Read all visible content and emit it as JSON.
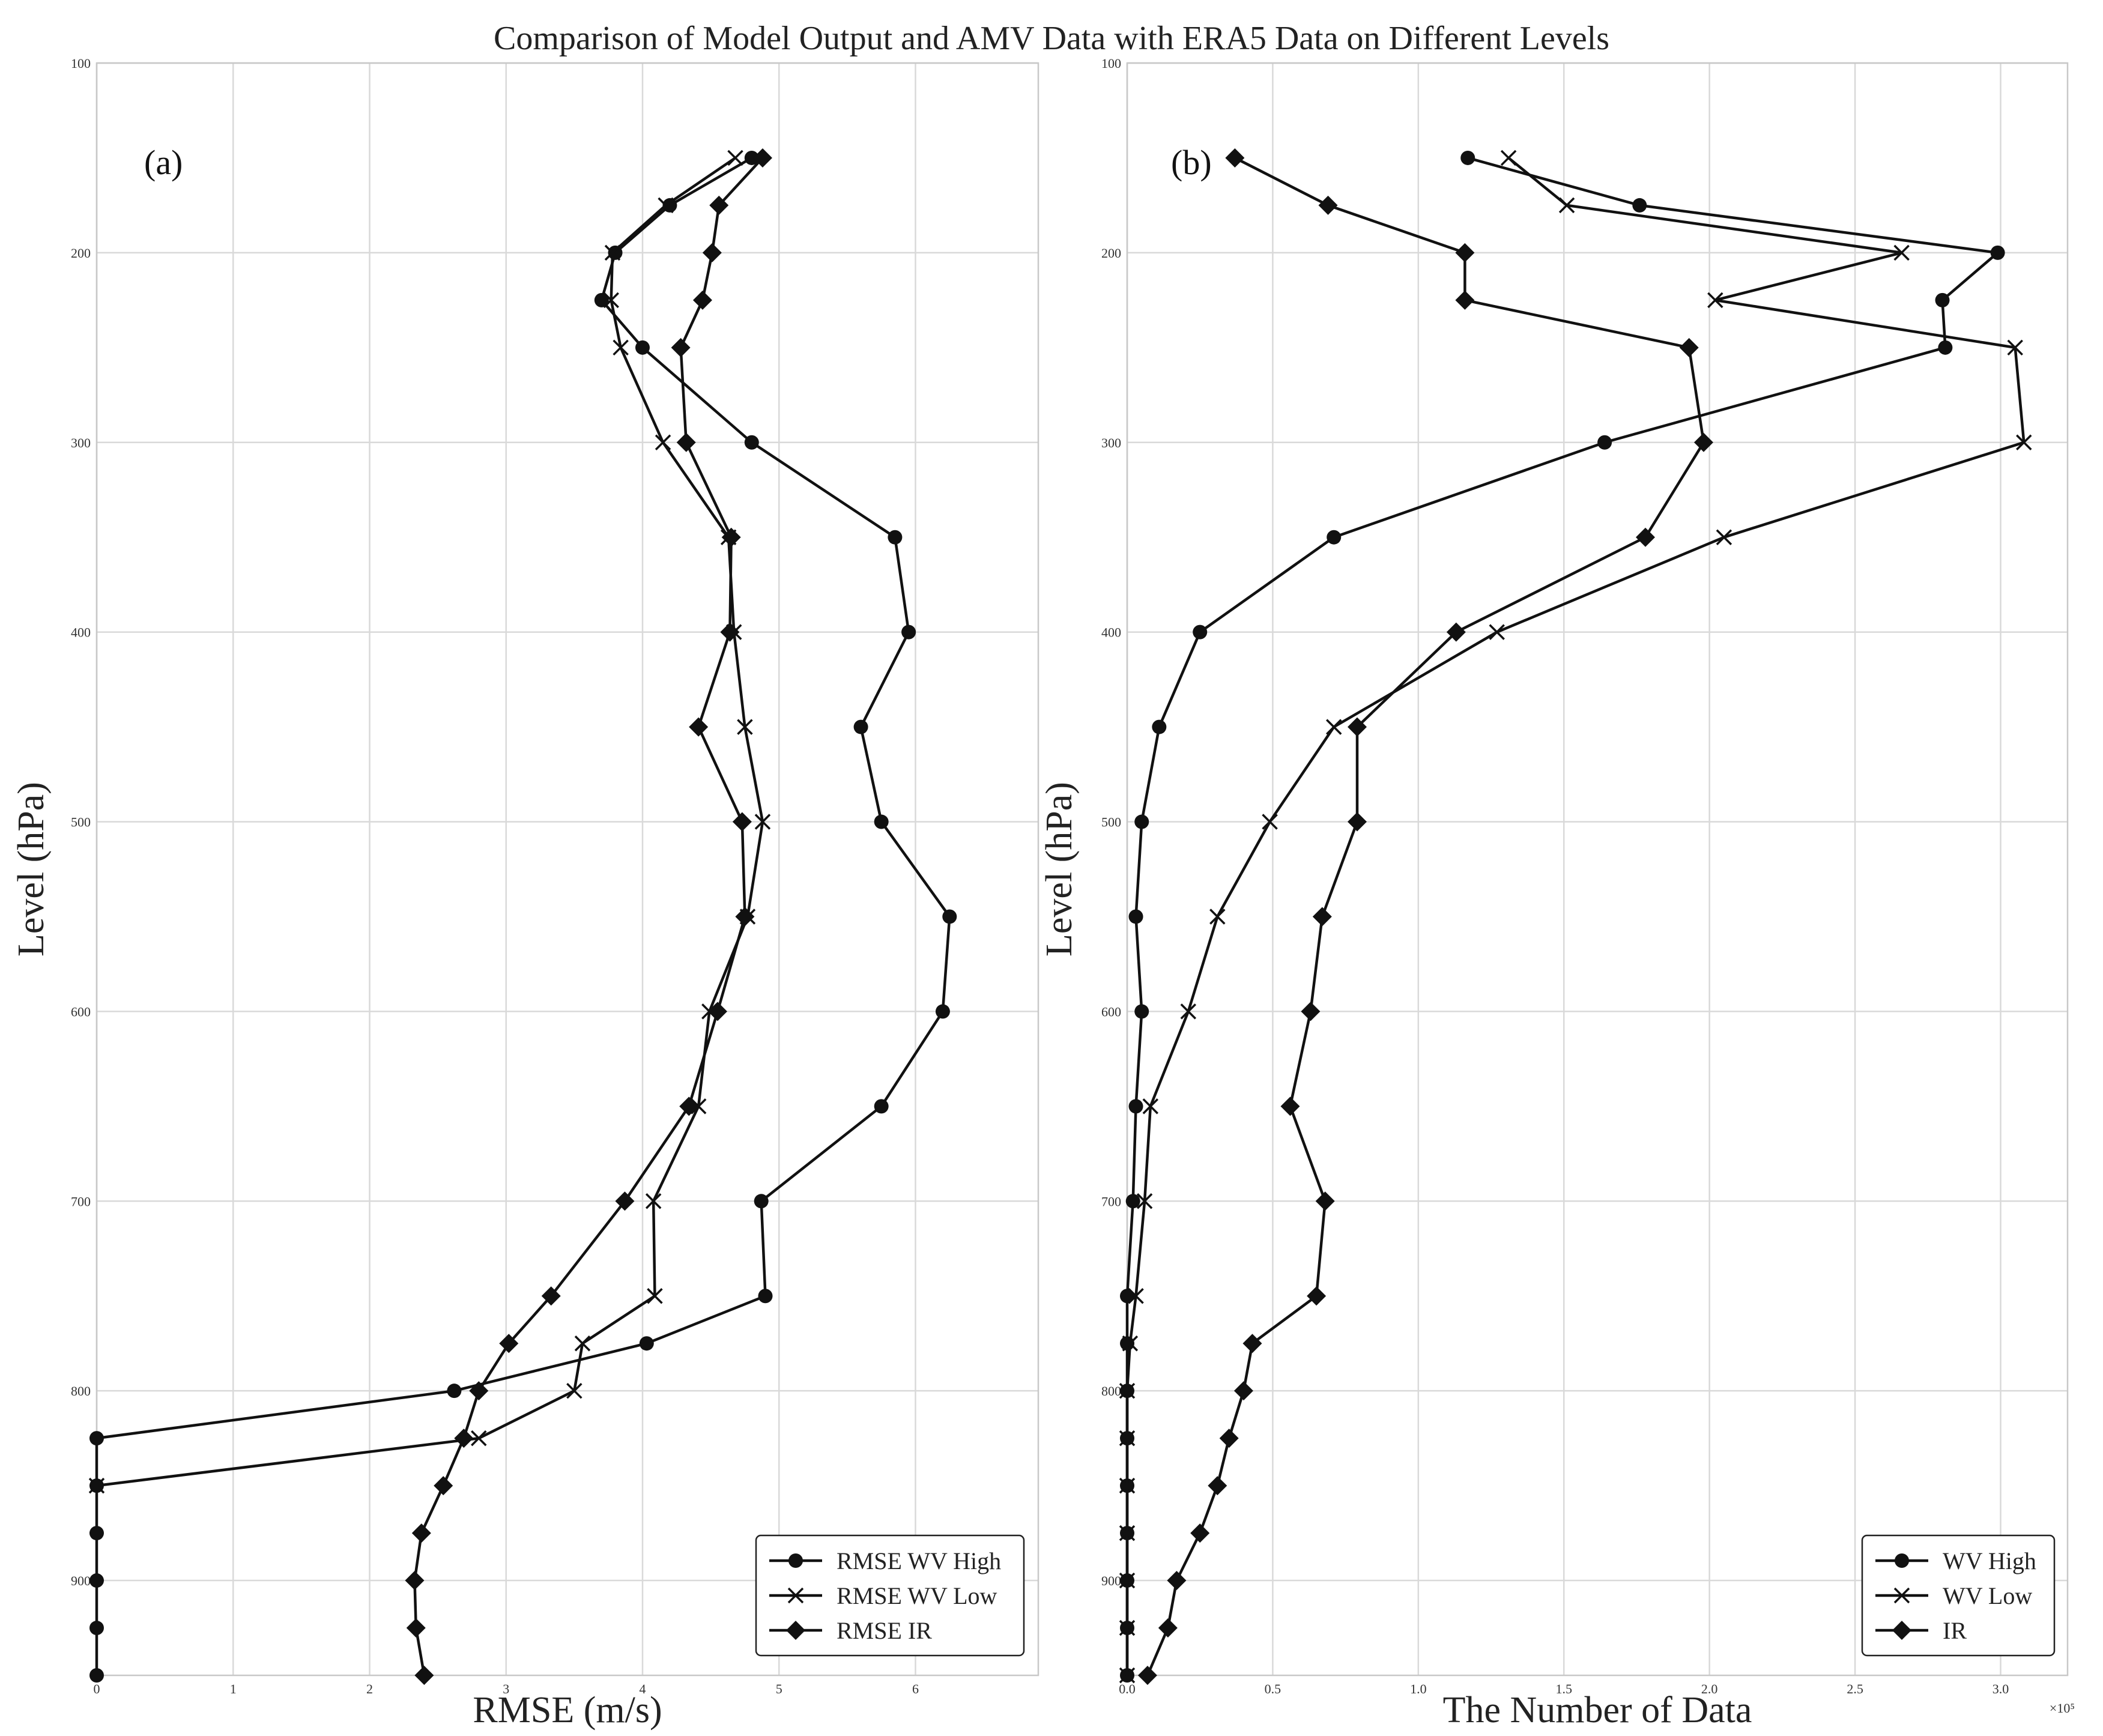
{
  "title": "Comparison of Model Output and AMV Data with ERA5 Data on Different Levels",
  "chart_data": [
    {
      "type": "line",
      "panel_label": "(a)",
      "xlabel": "RMSE (m/s)",
      "ylabel": "Level (hPa)",
      "xlim": [
        0,
        6.9
      ],
      "ylim": [
        950,
        100
      ],
      "y_inverted": true,
      "xticks": [
        "0",
        "1",
        "2",
        "3",
        "4",
        "5",
        "6"
      ],
      "yticks": [
        "100",
        "200",
        "300",
        "400",
        "500",
        "600",
        "700",
        "800",
        "900"
      ],
      "grid": true,
      "legend_position": "lower right",
      "levels": [
        150,
        175,
        200,
        225,
        250,
        300,
        350,
        400,
        450,
        500,
        550,
        600,
        650,
        700,
        750,
        775,
        800,
        825,
        850,
        875,
        900,
        925,
        950
      ],
      "series": [
        {
          "name": "RMSE WV High",
          "marker": "circle",
          "values": [
            4.8,
            4.2,
            3.8,
            3.7,
            4.0,
            4.8,
            5.85,
            5.95,
            5.6,
            5.75,
            6.25,
            6.2,
            5.75,
            4.87,
            4.9,
            4.03,
            2.62,
            0,
            0,
            0,
            0,
            0,
            0
          ]
        },
        {
          "name": "RMSE WV Low",
          "marker": "x",
          "values": [
            4.68,
            4.17,
            3.78,
            3.77,
            3.84,
            4.15,
            4.63,
            4.67,
            4.75,
            4.88,
            4.77,
            4.49,
            4.41,
            4.08,
            4.09,
            3.56,
            3.5,
            2.8,
            0,
            null,
            null,
            null,
            null
          ]
        },
        {
          "name": "RMSE IR",
          "marker": "diamond",
          "values": [
            4.88,
            4.56,
            4.51,
            4.44,
            4.28,
            4.32,
            4.65,
            4.64,
            4.41,
            4.73,
            4.75,
            4.55,
            4.34,
            3.87,
            3.33,
            3.02,
            2.8,
            2.69,
            2.54,
            2.38,
            2.33,
            2.34,
            2.4
          ]
        }
      ]
    },
    {
      "type": "line",
      "panel_label": "(b)",
      "xlabel": "The Number of Data",
      "ylabel": "Level (hPa)",
      "x_scale_label": "×10⁵",
      "xlim": [
        0,
        3.23
      ],
      "ylim": [
        950,
        100
      ],
      "y_inverted": true,
      "xticks": [
        "0.0",
        "0.5",
        "1.0",
        "1.5",
        "2.0",
        "2.5",
        "3.0"
      ],
      "yticks": [
        "100",
        "200",
        "300",
        "400",
        "500",
        "600",
        "700",
        "800",
        "900"
      ],
      "grid": true,
      "legend_position": "lower right",
      "levels": [
        150,
        175,
        200,
        225,
        250,
        300,
        350,
        400,
        450,
        500,
        550,
        600,
        650,
        700,
        750,
        775,
        800,
        825,
        850,
        875,
        900,
        925,
        950
      ],
      "series": [
        {
          "name": "WV High",
          "marker": "circle",
          "values": [
            1.17,
            1.76,
            2.99,
            2.8,
            2.81,
            1.64,
            0.71,
            0.25,
            0.11,
            0.05,
            0.03,
            0.05,
            0.03,
            0.02,
            0,
            0,
            0,
            0,
            0,
            0,
            0,
            0,
            0
          ]
        },
        {
          "name": "WV Low",
          "marker": "x",
          "values": [
            1.31,
            1.51,
            2.66,
            2.02,
            3.05,
            3.08,
            2.05,
            1.27,
            0.71,
            0.49,
            0.31,
            0.21,
            0.08,
            0.06,
            0.03,
            0.01,
            0,
            0,
            0,
            0,
            0,
            0,
            0
          ]
        },
        {
          "name": "IR",
          "marker": "diamond",
          "values": [
            0.37,
            0.69,
            1.16,
            1.16,
            1.93,
            1.98,
            1.78,
            1.13,
            0.79,
            0.79,
            0.67,
            0.63,
            0.56,
            0.68,
            0.65,
            0.43,
            0.4,
            0.35,
            0.31,
            0.25,
            0.17,
            0.14,
            0.07
          ]
        }
      ]
    }
  ]
}
